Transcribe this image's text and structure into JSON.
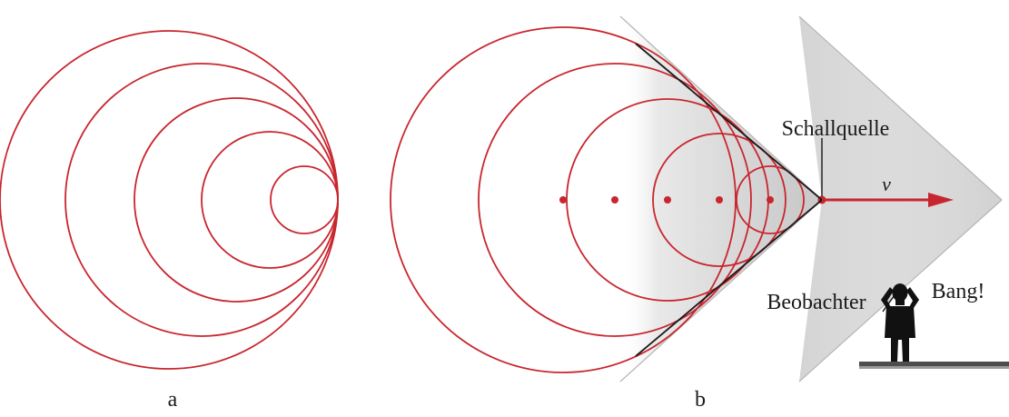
{
  "panel_a": {
    "label": "a"
  },
  "panel_b": {
    "label": "b",
    "source_label": "Schallquelle",
    "velocity_label": "v",
    "observer_label": "Beobachter",
    "bang_label": "Bang!"
  },
  "colors": {
    "wavefront": "#c8262e",
    "cone_line": "#1a1a1a",
    "shadow": "#c8c8c8",
    "ground": "#555555",
    "observer": "#111111"
  }
}
